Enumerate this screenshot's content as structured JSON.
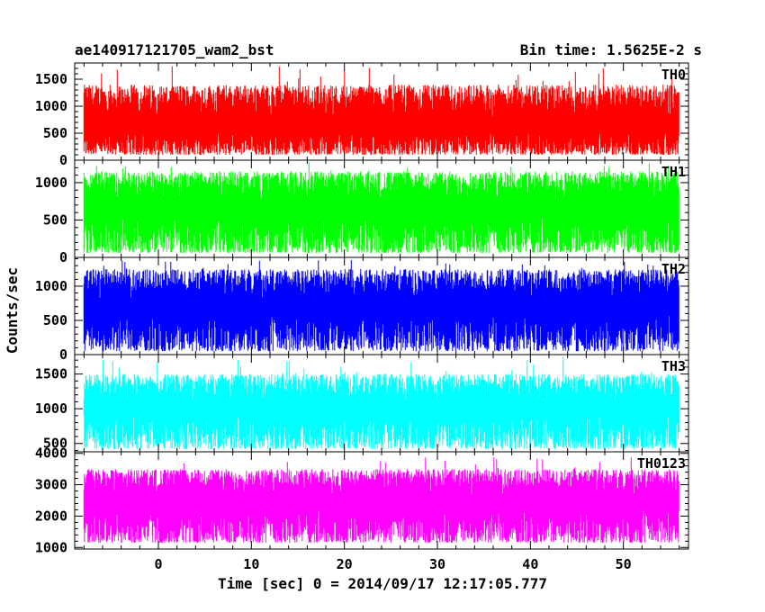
{
  "header": {
    "left_title": "ae140917121705_wam2_bst",
    "right_title": "Bin time: 1.5625E-2 s"
  },
  "chart_data": {
    "type": "line",
    "xlabel": "Time [sec] 0 = 2014/09/17 12:17:05.777",
    "ylabel": "Counts/sec",
    "xlim": [
      -9,
      57
    ],
    "data_x_range": [
      -8,
      56
    ],
    "bin_time_s": 0.015625,
    "x_ticks": [
      0,
      10,
      20,
      30,
      40,
      50
    ],
    "grid": false,
    "panels": [
      {
        "name": "TH0",
        "color": "#ff0000",
        "ylim": [
          0,
          1800
        ],
        "y_ticks": [
          0,
          500,
          1000,
          1500
        ],
        "approx_low": 100,
        "approx_mean": 550,
        "approx_high": 1400,
        "approx_peak": 1750
      },
      {
        "name": "TH1",
        "color": "#00ff00",
        "ylim": [
          0,
          1300
        ],
        "y_ticks": [
          0,
          500,
          1000
        ],
        "approx_low": 60,
        "approx_mean": 600,
        "approx_high": 1150,
        "approx_peak": 1280
      },
      {
        "name": "TH2",
        "color": "#0000ff",
        "ylim": [
          0,
          1420
        ],
        "y_ticks": [
          0,
          500,
          1000
        ],
        "approx_low": 50,
        "approx_mean": 640,
        "approx_high": 1250,
        "approx_peak": 1400
      },
      {
        "name": "TH3",
        "color": "#00ffff",
        "ylim": [
          380,
          1780
        ],
        "y_ticks": [
          500,
          1000,
          1500
        ],
        "approx_low": 420,
        "approx_mean": 950,
        "approx_high": 1500,
        "approx_peak": 1750
      },
      {
        "name": "TH0123",
        "color": "#ff00ff",
        "ylim": [
          950,
          4050
        ],
        "y_ticks": [
          1000,
          2000,
          3000,
          4000
        ],
        "approx_low": 1150,
        "approx_mean": 2350,
        "approx_high": 3500,
        "approx_peak": 3950
      }
    ]
  }
}
